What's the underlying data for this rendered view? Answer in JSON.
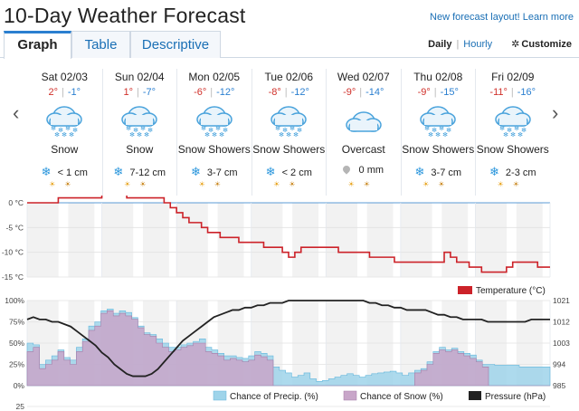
{
  "header": {
    "title": "10-Day Weather Forecast",
    "new_layout_link": "New forecast layout! Learn more"
  },
  "tabs": [
    {
      "label": "Graph",
      "active": true
    },
    {
      "label": "Table",
      "active": false
    },
    {
      "label": "Descriptive",
      "active": false
    }
  ],
  "view_options": {
    "daily": "Daily",
    "separator": "|",
    "hourly": "Hourly",
    "customize": "Customize"
  },
  "nav": {
    "prev": "‹",
    "next": "›"
  },
  "icons": {
    "snow": "snow-cloud-icon",
    "overcast": "overcast-cloud-icon",
    "snowflake": "snowflake-icon",
    "rain": "raindrop-icon",
    "sunrise": "sunrise-icon",
    "sunset": "sunset-icon"
  },
  "days": [
    {
      "date": "Sat 02/03",
      "hi": "2°",
      "lo": "-1°",
      "condition": "Snow",
      "icon": "snow",
      "precip_type": "snow",
      "amount": "< 1 cm"
    },
    {
      "date": "Sun 02/04",
      "hi": "1°",
      "lo": "-7°",
      "condition": "Snow",
      "icon": "snow",
      "precip_type": "snow",
      "amount": "7-12 cm"
    },
    {
      "date": "Mon 02/05",
      "hi": "-6°",
      "lo": "-12°",
      "condition": "Snow Showers",
      "icon": "snow",
      "precip_type": "snow",
      "amount": "3-7 cm"
    },
    {
      "date": "Tue 02/06",
      "hi": "-8°",
      "lo": "-12°",
      "condition": "Snow Showers",
      "icon": "snow",
      "precip_type": "snow",
      "amount": "< 2 cm"
    },
    {
      "date": "Wed 02/07",
      "hi": "-9°",
      "lo": "-14°",
      "condition": "Overcast",
      "icon": "overcast",
      "precip_type": "rain",
      "amount": "0 mm"
    },
    {
      "date": "Thu 02/08",
      "hi": "-9°",
      "lo": "-15°",
      "condition": "Snow Showers",
      "icon": "snow",
      "precip_type": "snow",
      "amount": "3-7 cm"
    },
    {
      "date": "Fri 02/09",
      "hi": "-11°",
      "lo": "-16°",
      "condition": "Snow Showers",
      "icon": "snow",
      "precip_type": "snow",
      "amount": "2-3 cm"
    }
  ],
  "chart_data": [
    {
      "type": "line",
      "series": [
        {
          "name": "Temperature (°C)",
          "color": "#cc2229",
          "unit": "°C",
          "values": [
            0,
            0,
            0,
            0,
            0,
            1,
            1,
            1,
            1,
            1,
            1,
            1,
            2,
            2,
            2,
            2,
            1,
            1,
            1,
            1,
            1,
            1,
            0,
            -1,
            -2,
            -3,
            -4,
            -4,
            -5,
            -6,
            -6,
            -7,
            -7,
            -7,
            -8,
            -8,
            -8,
            -8,
            -9,
            -9,
            -9,
            -10,
            -11,
            -10,
            -9,
            -9,
            -9,
            -9,
            -9,
            -9,
            -10,
            -10,
            -10,
            -10,
            -10,
            -11,
            -11,
            -11,
            -11,
            -12,
            -12,
            -12,
            -12,
            -12,
            -12,
            -12,
            -12,
            -10,
            -11,
            -12,
            -12,
            -13,
            -13,
            -14,
            -14,
            -14,
            -14,
            -13,
            -12,
            -12,
            -12,
            -12,
            -13,
            -13,
            -13
          ]
        }
      ],
      "ylim": [
        -15,
        0
      ],
      "yticks": [
        "0 °C",
        "-5 °C",
        "-10 °C",
        "-15 °C"
      ],
      "grid": true
    },
    {
      "type": "bar",
      "series": [
        {
          "name": "Chance of Precip. (%)",
          "color": "#9fd4ea",
          "values": [
            50,
            48,
            25,
            30,
            35,
            42,
            33,
            30,
            45,
            55,
            70,
            75,
            88,
            90,
            85,
            88,
            86,
            80,
            70,
            62,
            60,
            55,
            50,
            45,
            45,
            48,
            50,
            52,
            55,
            45,
            42,
            38,
            35,
            35,
            33,
            32,
            35,
            40,
            38,
            35,
            22,
            18,
            15,
            10,
            12,
            15,
            8,
            5,
            6,
            8,
            10,
            12,
            14,
            12,
            10,
            12,
            14,
            15,
            16,
            17,
            15,
            12,
            15,
            18,
            20,
            28,
            40,
            45,
            42,
            44,
            40,
            38,
            36,
            30,
            25,
            25,
            24,
            24,
            24,
            24,
            22,
            22,
            22,
            22,
            22
          ]
        },
        {
          "name": "Chance of Snow (%)",
          "color": "#c8a6c9",
          "values": [
            40,
            45,
            20,
            25,
            30,
            40,
            30,
            25,
            40,
            52,
            65,
            70,
            85,
            88,
            82,
            85,
            82,
            78,
            68,
            60,
            58,
            50,
            45,
            40,
            42,
            45,
            47,
            50,
            50,
            40,
            38,
            35,
            30,
            32,
            30,
            28,
            30,
            36,
            34,
            30,
            0,
            0,
            0,
            0,
            0,
            0,
            0,
            0,
            0,
            0,
            0,
            0,
            0,
            0,
            0,
            0,
            0,
            0,
            0,
            0,
            0,
            0,
            0,
            15,
            18,
            25,
            38,
            42,
            40,
            42,
            38,
            35,
            32,
            28,
            22,
            0,
            0,
            0,
            0,
            0,
            0,
            0,
            0,
            0,
            0
          ]
        },
        {
          "name": "Pressure (hPa)",
          "color": "#222222",
          "axis": "right",
          "values": [
            1013,
            1014,
            1013,
            1013,
            1012,
            1012,
            1011,
            1010,
            1008,
            1006,
            1004,
            1002,
            999,
            997,
            994,
            992,
            990,
            989,
            989,
            989,
            990,
            992,
            995,
            998,
            1001,
            1004,
            1006,
            1008,
            1010,
            1012,
            1014,
            1015,
            1016,
            1017,
            1017,
            1018,
            1018,
            1019,
            1019,
            1020,
            1020,
            1020,
            1021,
            1021,
            1021,
            1021,
            1021,
            1021,
            1021,
            1021,
            1021,
            1021,
            1021,
            1021,
            1021,
            1020,
            1020,
            1019,
            1019,
            1018,
            1018,
            1017,
            1017,
            1017,
            1017,
            1016,
            1015,
            1015,
            1014,
            1014,
            1013,
            1013,
            1013,
            1013,
            1012,
            1012,
            1012,
            1012,
            1012,
            1012,
            1012,
            1013,
            1013,
            1013,
            1013
          ]
        }
      ],
      "ylim_left": [
        0,
        100
      ],
      "yticks_left": [
        "100%",
        "75%",
        "50%",
        "25%",
        "0%"
      ],
      "ylim_right": [
        985,
        1021
      ],
      "yticks_right": [
        "1021",
        "1012",
        "1003",
        "994",
        "985"
      ],
      "grid": true
    },
    {
      "type": "bar",
      "yticks": [
        "25"
      ]
    }
  ]
}
